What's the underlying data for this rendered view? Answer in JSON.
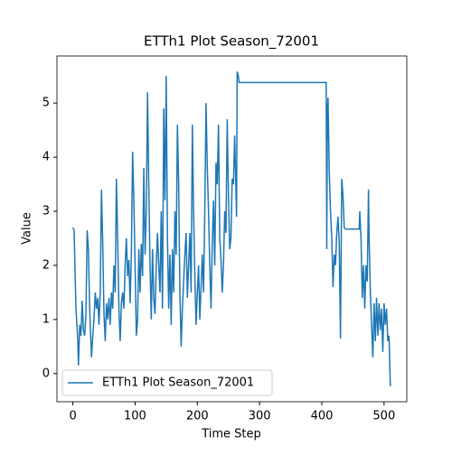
{
  "chart_data": {
    "type": "line",
    "title": "ETTh1 Plot Season_72001",
    "xlabel": "Time Step",
    "ylabel": "Value",
    "x": [
      0,
      2,
      5,
      8,
      9,
      11,
      13,
      15,
      17,
      19,
      21,
      23,
      25,
      27,
      30,
      32,
      34,
      36,
      38,
      40,
      42,
      44,
      46,
      48,
      50,
      52,
      54,
      56,
      58,
      60,
      62,
      64,
      66,
      68,
      70,
      72,
      74,
      76,
      78,
      80,
      82,
      84,
      86,
      88,
      90,
      92,
      94,
      96,
      98,
      100,
      102,
      104,
      106,
      108,
      110,
      112,
      114,
      116,
      118,
      120,
      122,
      124,
      126,
      128,
      130,
      132,
      134,
      136,
      138,
      140,
      142,
      144,
      146,
      148,
      150,
      152,
      154,
      156,
      158,
      160,
      162,
      164,
      166,
      168,
      170,
      172,
      174,
      176,
      178,
      180,
      182,
      184,
      186,
      188,
      190,
      192,
      194,
      196,
      198,
      200,
      202,
      204,
      206,
      208,
      210,
      212,
      214,
      216,
      218,
      220,
      222,
      224,
      226,
      228,
      230,
      232,
      234,
      236,
      238,
      240,
      242,
      244,
      246,
      248,
      250,
      252,
      254,
      256,
      258,
      260,
      262,
      263,
      264,
      266,
      267,
      407,
      408,
      409,
      410,
      412,
      414,
      416,
      418,
      420,
      422,
      424,
      426,
      428,
      430,
      432,
      434,
      436,
      438,
      460,
      461,
      463,
      465,
      467,
      469,
      471,
      473,
      475,
      476,
      478,
      480,
      482,
      484,
      486,
      488,
      490,
      492,
      494,
      496,
      498,
      500,
      502,
      504,
      506,
      508,
      510,
      511
    ],
    "series": [
      {
        "name": "ETTh1 Plot Season_72001",
        "color": "#1f77b4",
        "values": [
          2.7,
          2.65,
          1.2,
          0.6,
          0.15,
          0.9,
          0.7,
          1.35,
          0.8,
          0.7,
          1.1,
          2.65,
          2.3,
          1.2,
          0.3,
          0.7,
          1.0,
          1.5,
          1.2,
          1.4,
          0.9,
          1.5,
          3.4,
          2.4,
          1.1,
          0.6,
          1.3,
          1.0,
          1.4,
          0.9,
          1.5,
          1.2,
          2.0,
          1.5,
          3.6,
          2.5,
          1.2,
          0.6,
          1.3,
          1.5,
          1.2,
          2.0,
          2.5,
          1.8,
          2.1,
          1.3,
          2.2,
          4.1,
          3.2,
          2.0,
          0.7,
          1.0,
          2.3,
          1.5,
          2.4,
          1.8,
          3.8,
          2.2,
          3.0,
          5.2,
          3.5,
          2.0,
          1.0,
          2.3,
          1.4,
          1.1,
          2.0,
          2.6,
          2.0,
          1.5,
          3.0,
          1.2,
          4.9,
          3.2,
          5.5,
          2.5,
          1.2,
          2.2,
          0.9,
          2.3,
          1.5,
          3.0,
          2.2,
          4.6,
          3.5,
          1.5,
          0.5,
          1.2,
          1.7,
          2.2,
          2.6,
          1.4,
          2.0,
          2.6,
          1.5,
          4.6,
          3.0,
          1.8,
          0.9,
          1.5,
          2.0,
          1.0,
          1.6,
          2.2,
          1.5,
          3.0,
          5.0,
          3.8,
          3.0,
          2.0,
          1.2,
          2.4,
          3.2,
          2.0,
          3.9,
          3.5,
          4.6,
          2.5,
          2.1,
          1.5,
          2.0,
          3.0,
          2.6,
          4.7,
          3.3,
          2.3,
          2.5,
          3.6,
          3.5,
          4.4,
          3.4,
          2.9,
          5.58,
          5.5,
          5.38,
          5.38,
          2.3,
          4.9,
          5.1,
          3.7,
          3.0,
          2.5,
          1.6,
          2.2,
          2.0,
          2.6,
          2.9,
          2.4,
          0.65,
          3.6,
          3.3,
          2.7,
          2.67,
          2.67,
          3.0,
          2.5,
          1.4,
          2.0,
          1.2,
          2.0,
          1.7,
          3.4,
          2.5,
          1.5,
          0.9,
          0.3,
          1.3,
          0.6,
          1.4,
          0.7,
          1.3,
          0.8,
          1.2,
          0.4,
          1.3,
          0.9,
          1.2,
          0.6,
          0.7,
          -0.2,
          -0.23
        ]
      }
    ],
    "xlim": [
      -25.55,
      536.55
    ],
    "ylim": [
      -0.52,
      5.87
    ],
    "xticks": [
      0,
      100,
      200,
      300,
      400,
      500
    ],
    "yticks": [
      0,
      1,
      2,
      3,
      4,
      5
    ],
    "legend": "lower left"
  }
}
